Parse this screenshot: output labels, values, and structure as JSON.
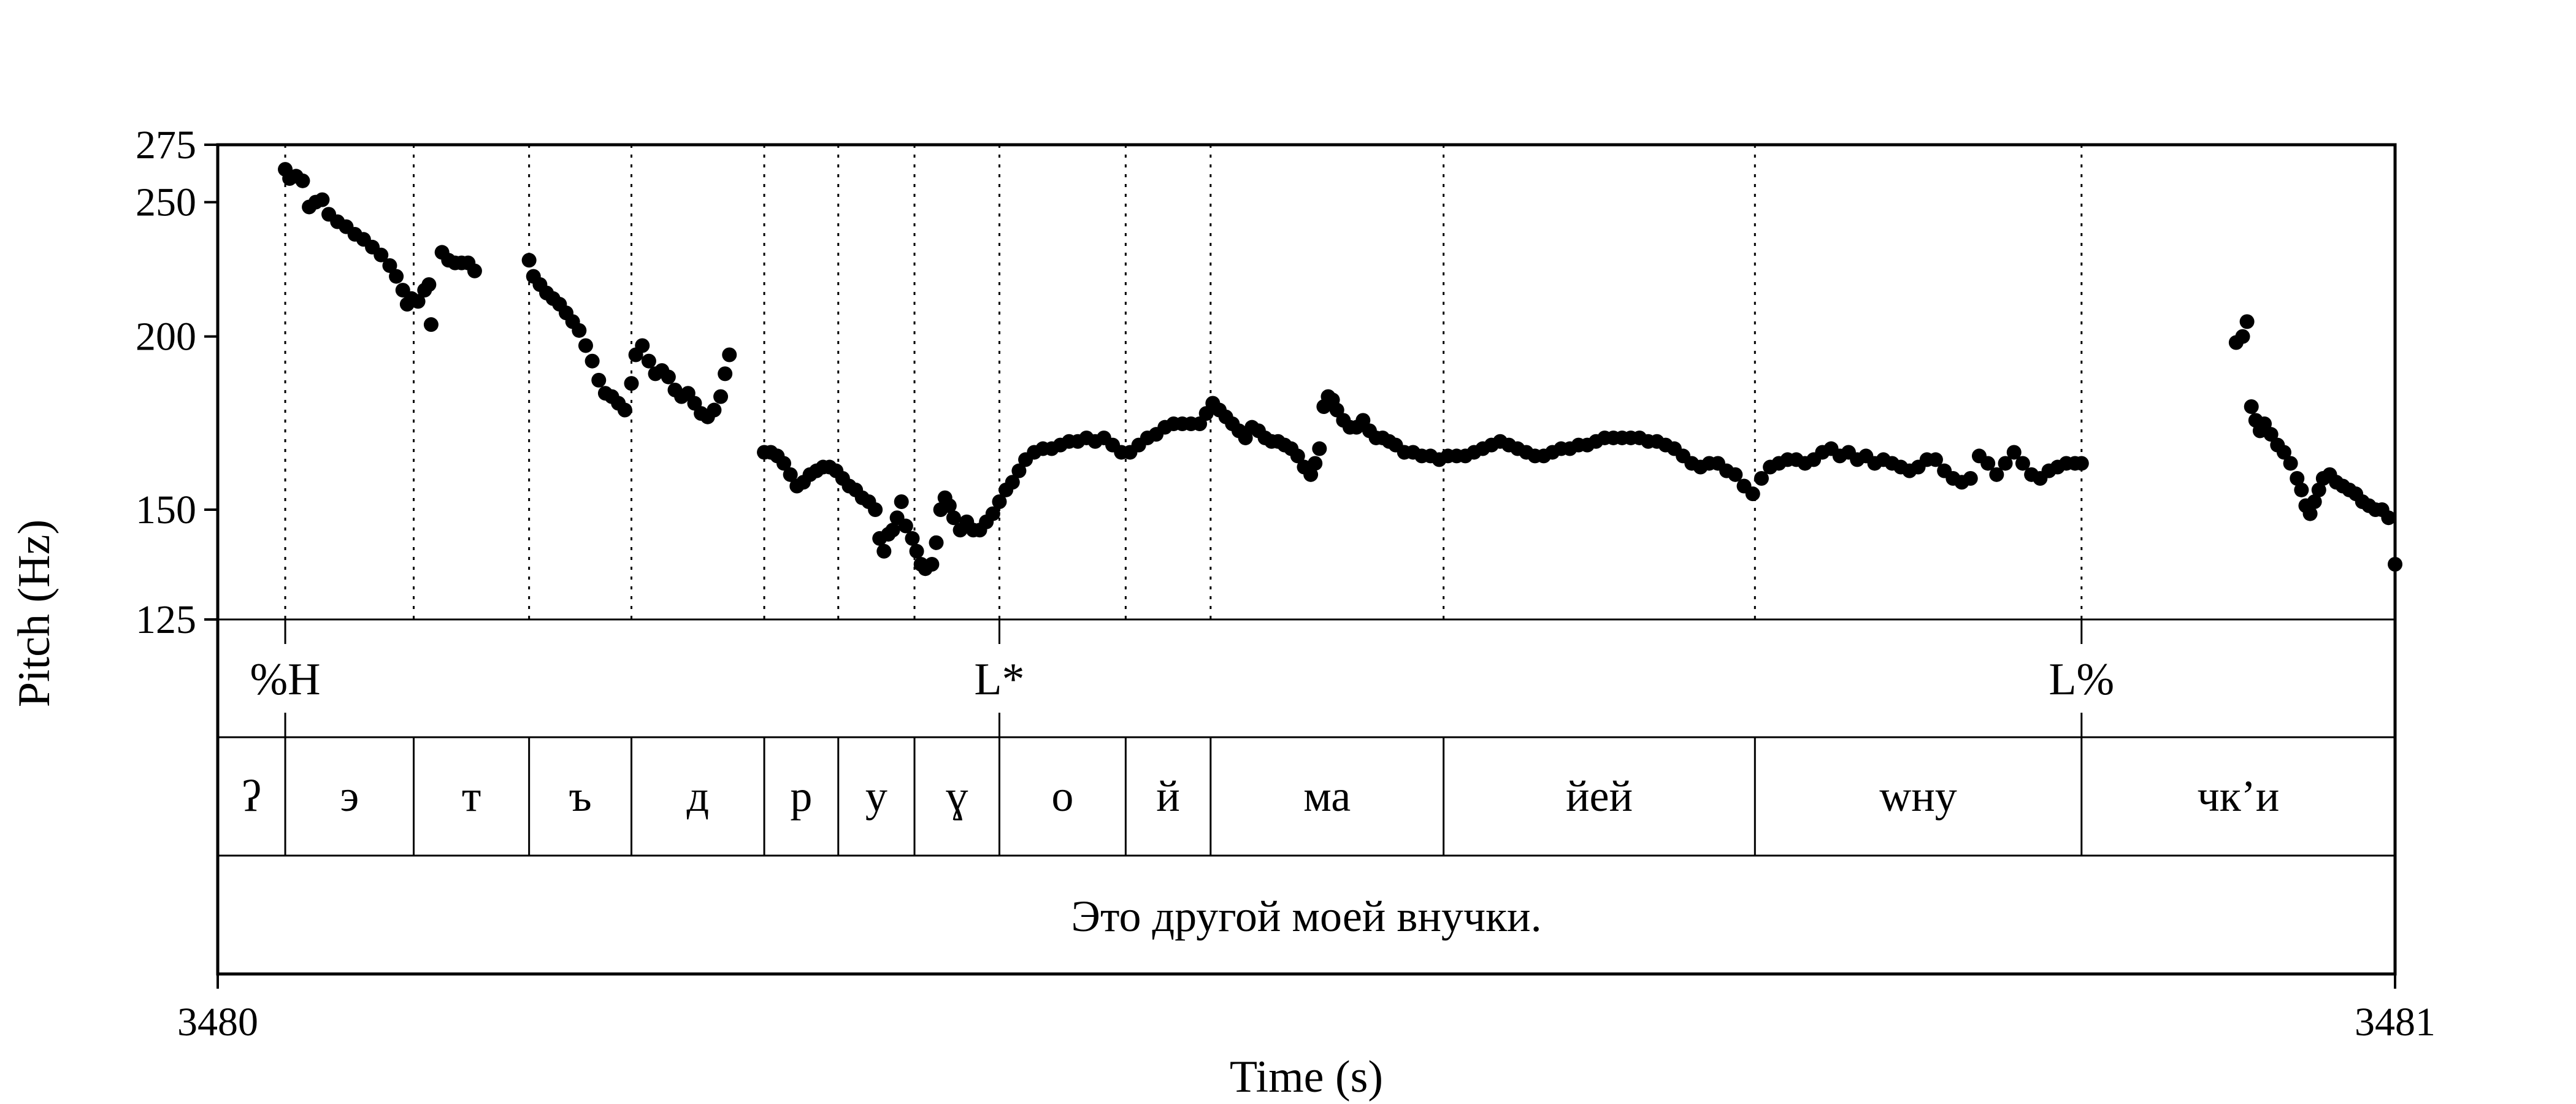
{
  "chart_data": {
    "type": "scatter",
    "title": "",
    "xlabel": "Time (s)",
    "ylabel": "Pitch (Hz)",
    "xlim": [
      3480,
      3481
    ],
    "ylim": [
      125,
      275
    ],
    "yscale": "log",
    "yticks": [
      125,
      150,
      200,
      250,
      275
    ],
    "ytick_labels": [
      "125",
      "150",
      "200",
      "250",
      "275"
    ],
    "xtick_labels": [
      "3480",
      "3481"
    ],
    "grid": false,
    "boundaries": [
      3480.031,
      3480.09,
      3480.143,
      3480.19,
      3480.251,
      3480.285,
      3480.32,
      3480.359,
      3480.417,
      3480.456,
      3480.563,
      3480.706,
      3480.856
    ],
    "tones": [
      {
        "label": "%H",
        "time": 3480.031
      },
      {
        "label": "L*",
        "time": 3480.359
      },
      {
        "label": "L%",
        "time": 3480.856
      }
    ],
    "segments": [
      {
        "label": "ʔ",
        "start": 3480.0,
        "end": 3480.031
      },
      {
        "label": "э",
        "start": 3480.031,
        "end": 3480.09
      },
      {
        "label": "т",
        "start": 3480.09,
        "end": 3480.143
      },
      {
        "label": "ъ",
        "start": 3480.143,
        "end": 3480.19
      },
      {
        "label": "д",
        "start": 3480.19,
        "end": 3480.251
      },
      {
        "label": "р",
        "start": 3480.251,
        "end": 3480.285
      },
      {
        "label": "у",
        "start": 3480.285,
        "end": 3480.32
      },
      {
        "label": "ɣ",
        "start": 3480.32,
        "end": 3480.359
      },
      {
        "label": "о",
        "start": 3480.359,
        "end": 3480.417
      },
      {
        "label": "й",
        "start": 3480.417,
        "end": 3480.456
      },
      {
        "label": "ма",
        "start": 3480.456,
        "end": 3480.563
      },
      {
        "label": "йей",
        "start": 3480.563,
        "end": 3480.706
      },
      {
        "label": "wну",
        "start": 3480.706,
        "end": 3480.856
      },
      {
        "label": "чк’и",
        "start": 3480.856,
        "end": 3481.0
      }
    ],
    "sentence": "Это другой моей внучки.",
    "pitch_contour": [
      [
        3480.031,
        264
      ],
      [
        3480.033,
        260
      ],
      [
        3480.036,
        261
      ],
      [
        3480.039,
        259
      ],
      [
        3480.042,
        248
      ],
      [
        3480.045,
        250
      ],
      [
        3480.048,
        251
      ],
      [
        3480.051,
        245
      ],
      [
        3480.055,
        242
      ],
      [
        3480.059,
        240
      ],
      [
        3480.063,
        237
      ],
      [
        3480.067,
        235
      ],
      [
        3480.071,
        232
      ],
      [
        3480.075,
        229
      ],
      [
        3480.079,
        225
      ],
      [
        3480.082,
        221
      ],
      [
        3480.085,
        216
      ],
      [
        3480.087,
        211
      ],
      [
        3480.089,
        213
      ],
      [
        3480.092,
        212
      ],
      [
        3480.095,
        216
      ],
      [
        3480.097,
        218
      ],
      [
        3480.098,
        204
      ],
      [
        3480.103,
        230
      ],
      [
        3480.106,
        227
      ],
      [
        3480.109,
        226
      ],
      [
        3480.112,
        226
      ],
      [
        3480.115,
        226
      ],
      [
        3480.118,
        223
      ],
      [
        3480.143,
        227
      ],
      [
        3480.145,
        221
      ],
      [
        3480.148,
        218
      ],
      [
        3480.151,
        215
      ],
      [
        3480.154,
        213
      ],
      [
        3480.157,
        211
      ],
      [
        3480.16,
        208
      ],
      [
        3480.163,
        205
      ],
      [
        3480.166,
        202
      ],
      [
        3480.169,
        197
      ],
      [
        3480.172,
        192
      ],
      [
        3480.175,
        186
      ],
      [
        3480.178,
        182
      ],
      [
        3480.181,
        181
      ],
      [
        3480.184,
        179
      ],
      [
        3480.187,
        177
      ],
      [
        3480.19,
        185
      ],
      [
        3480.192,
        194
      ],
      [
        3480.195,
        197
      ],
      [
        3480.198,
        192
      ],
      [
        3480.201,
        188
      ],
      [
        3480.204,
        189
      ],
      [
        3480.207,
        187
      ],
      [
        3480.21,
        183
      ],
      [
        3480.213,
        181
      ],
      [
        3480.216,
        182
      ],
      [
        3480.219,
        179
      ],
      [
        3480.222,
        176
      ],
      [
        3480.225,
        175
      ],
      [
        3480.228,
        177
      ],
      [
        3480.231,
        181
      ],
      [
        3480.233,
        188
      ],
      [
        3480.235,
        194
      ],
      [
        3480.251,
        165
      ],
      [
        3480.254,
        165
      ],
      [
        3480.257,
        164
      ],
      [
        3480.26,
        162
      ],
      [
        3480.263,
        159
      ],
      [
        3480.266,
        156
      ],
      [
        3480.269,
        157
      ],
      [
        3480.272,
        159
      ],
      [
        3480.275,
        160
      ],
      [
        3480.278,
        161
      ],
      [
        3480.281,
        161
      ],
      [
        3480.284,
        160
      ],
      [
        3480.287,
        158
      ],
      [
        3480.29,
        156
      ],
      [
        3480.293,
        155
      ],
      [
        3480.296,
        153
      ],
      [
        3480.299,
        152
      ],
      [
        3480.302,
        150
      ],
      [
        3480.304,
        143
      ],
      [
        3480.306,
        140
      ],
      [
        3480.308,
        144
      ],
      [
        3480.31,
        145
      ],
      [
        3480.312,
        148
      ],
      [
        3480.314,
        152
      ],
      [
        3480.316,
        146
      ],
      [
        3480.319,
        143
      ],
      [
        3480.321,
        140
      ],
      [
        3480.323,
        137
      ],
      [
        3480.325,
        136
      ],
      [
        3480.328,
        137
      ],
      [
        3480.33,
        142
      ],
      [
        3480.332,
        150
      ],
      [
        3480.334,
        153
      ],
      [
        3480.336,
        151
      ],
      [
        3480.338,
        148
      ],
      [
        3480.341,
        145
      ],
      [
        3480.344,
        147
      ],
      [
        3480.347,
        145
      ],
      [
        3480.35,
        145
      ],
      [
        3480.353,
        147
      ],
      [
        3480.356,
        149
      ],
      [
        3480.359,
        152
      ],
      [
        3480.362,
        155
      ],
      [
        3480.365,
        157
      ],
      [
        3480.368,
        160
      ],
      [
        3480.371,
        163
      ],
      [
        3480.375,
        165
      ],
      [
        3480.379,
        166
      ],
      [
        3480.383,
        166
      ],
      [
        3480.387,
        167
      ],
      [
        3480.391,
        168
      ],
      [
        3480.395,
        168
      ],
      [
        3480.399,
        169
      ],
      [
        3480.403,
        168
      ],
      [
        3480.407,
        169
      ],
      [
        3480.411,
        167
      ],
      [
        3480.415,
        165
      ],
      [
        3480.419,
        165
      ],
      [
        3480.423,
        167
      ],
      [
        3480.427,
        169
      ],
      [
        3480.431,
        170
      ],
      [
        3480.435,
        172
      ],
      [
        3480.439,
        173
      ],
      [
        3480.443,
        173
      ],
      [
        3480.447,
        173
      ],
      [
        3480.451,
        173
      ],
      [
        3480.454,
        176
      ],
      [
        3480.457,
        179
      ],
      [
        3480.46,
        177
      ],
      [
        3480.463,
        175
      ],
      [
        3480.466,
        173
      ],
      [
        3480.469,
        171
      ],
      [
        3480.472,
        169
      ],
      [
        3480.475,
        172
      ],
      [
        3480.478,
        171
      ],
      [
        3480.481,
        169
      ],
      [
        3480.484,
        168
      ],
      [
        3480.487,
        168
      ],
      [
        3480.49,
        167
      ],
      [
        3480.493,
        166
      ],
      [
        3480.496,
        164
      ],
      [
        3480.499,
        161
      ],
      [
        3480.502,
        159
      ],
      [
        3480.504,
        162
      ],
      [
        3480.506,
        166
      ],
      [
        3480.508,
        178
      ],
      [
        3480.51,
        181
      ],
      [
        3480.512,
        180
      ],
      [
        3480.514,
        177
      ],
      [
        3480.517,
        174
      ],
      [
        3480.52,
        172
      ],
      [
        3480.523,
        172
      ],
      [
        3480.526,
        174
      ],
      [
        3480.529,
        171
      ],
      [
        3480.532,
        169
      ],
      [
        3480.535,
        169
      ],
      [
        3480.538,
        168
      ],
      [
        3480.541,
        167
      ],
      [
        3480.545,
        165
      ],
      [
        3480.549,
        165
      ],
      [
        3480.553,
        164
      ],
      [
        3480.557,
        164
      ],
      [
        3480.561,
        163
      ],
      [
        3480.565,
        164
      ],
      [
        3480.569,
        164
      ],
      [
        3480.573,
        164
      ],
      [
        3480.577,
        165
      ],
      [
        3480.581,
        166
      ],
      [
        3480.585,
        167
      ],
      [
        3480.589,
        168
      ],
      [
        3480.593,
        167
      ],
      [
        3480.597,
        166
      ],
      [
        3480.601,
        165
      ],
      [
        3480.605,
        164
      ],
      [
        3480.609,
        164
      ],
      [
        3480.613,
        165
      ],
      [
        3480.617,
        166
      ],
      [
        3480.621,
        166
      ],
      [
        3480.625,
        167
      ],
      [
        3480.629,
        167
      ],
      [
        3480.633,
        168
      ],
      [
        3480.637,
        169
      ],
      [
        3480.641,
        169
      ],
      [
        3480.645,
        169
      ],
      [
        3480.649,
        169
      ],
      [
        3480.653,
        169
      ],
      [
        3480.657,
        168
      ],
      [
        3480.661,
        168
      ],
      [
        3480.665,
        167
      ],
      [
        3480.669,
        166
      ],
      [
        3480.673,
        164
      ],
      [
        3480.677,
        162
      ],
      [
        3480.681,
        161
      ],
      [
        3480.685,
        162
      ],
      [
        3480.689,
        162
      ],
      [
        3480.693,
        160
      ],
      [
        3480.697,
        159
      ],
      [
        3480.701,
        156
      ],
      [
        3480.705,
        154
      ],
      [
        3480.709,
        158
      ],
      [
        3480.713,
        161
      ],
      [
        3480.717,
        162
      ],
      [
        3480.721,
        163
      ],
      [
        3480.725,
        163
      ],
      [
        3480.729,
        162
      ],
      [
        3480.733,
        163
      ],
      [
        3480.737,
        165
      ],
      [
        3480.741,
        166
      ],
      [
        3480.745,
        164
      ],
      [
        3480.749,
        165
      ],
      [
        3480.753,
        163
      ],
      [
        3480.757,
        164
      ],
      [
        3480.761,
        162
      ],
      [
        3480.765,
        163
      ],
      [
        3480.769,
        162
      ],
      [
        3480.773,
        161
      ],
      [
        3480.777,
        160
      ],
      [
        3480.781,
        161
      ],
      [
        3480.785,
        163
      ],
      [
        3480.789,
        163
      ],
      [
        3480.793,
        160
      ],
      [
        3480.797,
        158
      ],
      [
        3480.801,
        157
      ],
      [
        3480.805,
        158
      ],
      [
        3480.809,
        164
      ],
      [
        3480.813,
        162
      ],
      [
        3480.817,
        159
      ],
      [
        3480.821,
        162
      ],
      [
        3480.825,
        165
      ],
      [
        3480.829,
        162
      ],
      [
        3480.833,
        159
      ],
      [
        3480.837,
        158
      ],
      [
        3480.841,
        160
      ],
      [
        3480.845,
        161
      ],
      [
        3480.849,
        162
      ],
      [
        3480.853,
        162
      ],
      [
        3480.856,
        162
      ],
      [
        3480.927,
        198
      ],
      [
        3480.93,
        200
      ],
      [
        3480.932,
        205
      ],
      [
        3480.934,
        178
      ],
      [
        3480.936,
        174
      ],
      [
        3480.938,
        171
      ],
      [
        3480.94,
        173
      ],
      [
        3480.943,
        170
      ],
      [
        3480.946,
        167
      ],
      [
        3480.949,
        165
      ],
      [
        3480.952,
        162
      ],
      [
        3480.955,
        158
      ],
      [
        3480.957,
        155
      ],
      [
        3480.959,
        151
      ],
      [
        3480.961,
        149
      ],
      [
        3480.963,
        152
      ],
      [
        3480.965,
        155
      ],
      [
        3480.967,
        158
      ],
      [
        3480.97,
        159
      ],
      [
        3480.973,
        157
      ],
      [
        3480.976,
        156
      ],
      [
        3480.979,
        155
      ],
      [
        3480.982,
        154
      ],
      [
        3480.985,
        152
      ],
      [
        3480.988,
        151
      ],
      [
        3480.991,
        150
      ],
      [
        3480.994,
        150
      ],
      [
        3480.997,
        148
      ],
      [
        3481.0,
        137
      ]
    ]
  }
}
